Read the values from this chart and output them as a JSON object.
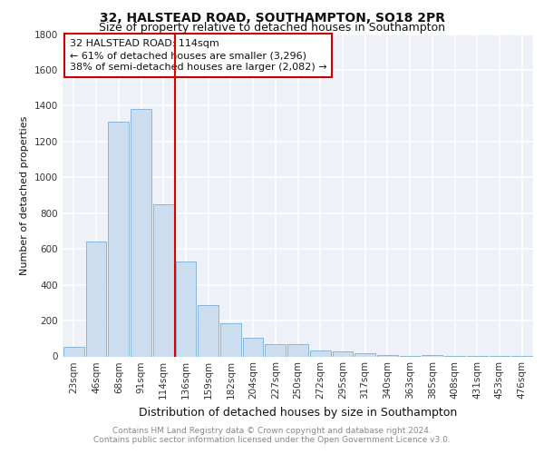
{
  "title": "32, HALSTEAD ROAD, SOUTHAMPTON, SO18 2PR",
  "subtitle": "Size of property relative to detached houses in Southampton",
  "xlabel": "Distribution of detached houses by size in Southampton",
  "ylabel": "Number of detached properties",
  "categories": [
    "23sqm",
    "46sqm",
    "68sqm",
    "91sqm",
    "114sqm",
    "136sqm",
    "159sqm",
    "182sqm",
    "204sqm",
    "227sqm",
    "250sqm",
    "272sqm",
    "295sqm",
    "317sqm",
    "340sqm",
    "363sqm",
    "385sqm",
    "408sqm",
    "431sqm",
    "453sqm",
    "476sqm"
  ],
  "values": [
    55,
    640,
    1310,
    1380,
    850,
    530,
    285,
    185,
    105,
    68,
    68,
    35,
    30,
    20,
    10,
    5,
    10,
    2,
    1,
    1,
    2
  ],
  "bar_color": "#ccddf0",
  "bar_edge_color": "#7aafd4",
  "red_line_index": 4,
  "ylim": [
    0,
    1800
  ],
  "yticks": [
    0,
    200,
    400,
    600,
    800,
    1000,
    1200,
    1400,
    1600,
    1800
  ],
  "annotation_title": "32 HALSTEAD ROAD: 114sqm",
  "annotation_line1": "← 61% of detached houses are smaller (3,296)",
  "annotation_line2": "38% of semi-detached houses are larger (2,082) →",
  "annotation_box_color": "#ffffff",
  "annotation_box_edge": "#cc0000",
  "footer_line1": "Contains HM Land Registry data © Crown copyright and database right 2024.",
  "footer_line2": "Contains public sector information licensed under the Open Government Licence v3.0.",
  "background_color": "#eef2f8",
  "grid_color": "#ffffff",
  "title_fontsize": 10,
  "subtitle_fontsize": 9,
  "xlabel_fontsize": 9,
  "ylabel_fontsize": 8,
  "tick_fontsize": 7.5,
  "annotation_fontsize": 8,
  "footer_fontsize": 6.5
}
